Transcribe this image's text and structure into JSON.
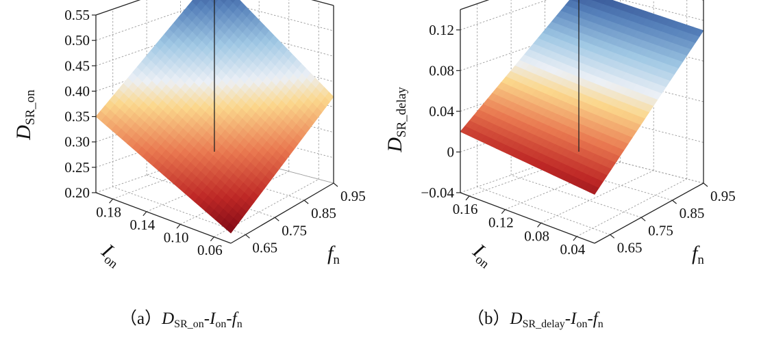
{
  "chart_data": [
    {
      "type": "surface",
      "panel": "a",
      "caption": {
        "prefix": "（a）",
        "d_main": "D",
        "d_sub": "SR_on",
        "sep1": "-",
        "i_main": "I",
        "i_sub": "on",
        "sep2": "-",
        "f_main": "f",
        "f_sub": "n"
      },
      "zlabel": {
        "main": "D",
        "sub": "SR_on"
      },
      "xlabel": {
        "main": "I",
        "sub": "on"
      },
      "ylabel": {
        "main": "f",
        "sub": "n"
      },
      "x_ticks": [
        "0.18",
        "0.14",
        "0.10",
        "0.06"
      ],
      "y_ticks": [
        "0.65",
        "0.75",
        "0.85",
        "0.95"
      ],
      "z_ticks": [
        "0.20",
        "0.25",
        "0.30",
        "0.35",
        "0.40",
        "0.45",
        "0.50",
        "0.55"
      ],
      "xlim": [
        0.04,
        0.2
      ],
      "ylim": [
        0.6,
        0.95
      ],
      "zlim": [
        0.2,
        0.55
      ],
      "corner_values": {
        "Ion_0.20_fn_0.60": 0.35,
        "Ion_0.04_fn_0.60": 0.22,
        "Ion_0.20_fn_0.95": 0.55,
        "Ion_0.04_fn_0.95": 0.37
      },
      "colormap": "RdYlBu_r",
      "grid": true
    },
    {
      "type": "surface",
      "panel": "b",
      "caption": {
        "prefix": "（b）",
        "d_main": "D",
        "d_sub": "SR_delay",
        "sep1": "-",
        "i_main": "I",
        "i_sub": "on",
        "sep2": "-",
        "f_main": "f",
        "f_sub": "n"
      },
      "zlabel": {
        "main": "D",
        "sub": "SR_delay"
      },
      "xlabel": {
        "main": "I",
        "sub": "on"
      },
      "ylabel": {
        "main": "f",
        "sub": "n"
      },
      "x_ticks": [
        "0.16",
        "0.12",
        "0.08",
        "0.04"
      ],
      "y_ticks": [
        "0.65",
        "0.75",
        "0.85",
        "0.95"
      ],
      "z_ticks": [
        "−0.04",
        "0",
        "0.04",
        "0.08",
        "0.12"
      ],
      "xlim": [
        0.02,
        0.17
      ],
      "ylim": [
        0.6,
        0.95
      ],
      "zlim": [
        -0.04,
        0.14
      ],
      "corner_values": {
        "Ion_0.17_fn_0.60": 0.02,
        "Ion_0.02_fn_0.60": 0.008,
        "Ion_0.17_fn_0.95": 0.12,
        "Ion_0.02_fn_0.95": 0.11
      },
      "colormap": "RdYlBu_r",
      "grid": true
    }
  ]
}
